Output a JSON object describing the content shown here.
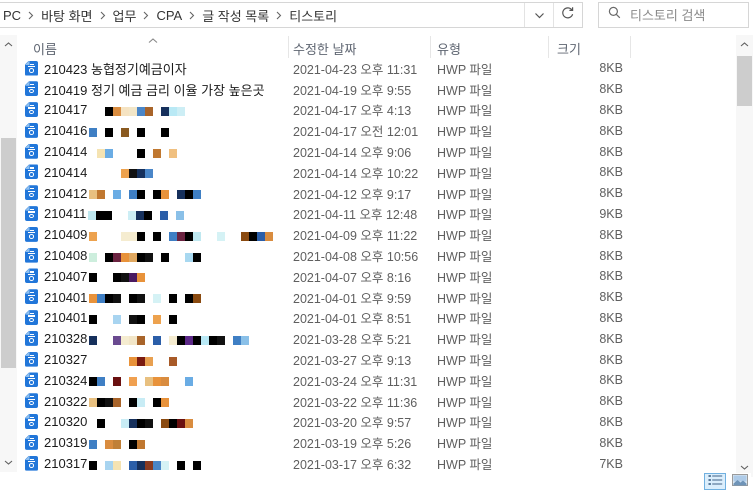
{
  "breadcrumb": {
    "items": [
      "PC",
      "바탕 화면",
      "업무",
      "CPA",
      "글 작성 목록",
      "티스토리"
    ]
  },
  "address_bar": {
    "dropdown_icon": "chevron-down-icon",
    "refresh_icon": "refresh-icon"
  },
  "search": {
    "placeholder": "티스토리 검색",
    "icon": "search-icon"
  },
  "list": {
    "columns": [
      {
        "key": "name",
        "label": "이름"
      },
      {
        "key": "date",
        "label": "수정한 날짜"
      },
      {
        "key": "type",
        "label": "유형"
      },
      {
        "key": "size",
        "label": "크기"
      }
    ],
    "sort": {
      "column": "이름",
      "direction": "asc"
    },
    "files": [
      {
        "name": "210423 농협정기예금이자",
        "censor": [],
        "date": "2021-04-23 오후 11:31",
        "type": "HWP 파일",
        "size": "8KB"
      },
      {
        "name": "210419 정기 예금 금리 이율 가장 높은곳",
        "censor": [],
        "date": "2021-04-19 오후 9:55",
        "type": "HWP 파일",
        "size": "8KB"
      },
      {
        "name": "210417",
        "censor": [
          "",
          "",
          "#000000",
          "#d98c3f",
          "#f5e3c2",
          "#f2e6c8",
          "#4a86c8",
          "#a8642a",
          "",
          "#16305c",
          "#b9e9f5",
          "#cdeef5"
        ],
        "date": "2021-04-17 오후 4:13",
        "type": "HWP 파일",
        "size": "8KB"
      },
      {
        "name": "210416",
        "censor": [
          "#3f7fc4",
          "",
          "#000000",
          "",
          "#8a5a20",
          "",
          "#000000",
          "",
          "",
          "#000000"
        ],
        "date": "2021-04-17 오전 12:01",
        "type": "HWP 파일",
        "size": "8KB"
      },
      {
        "name": "210414",
        "censor": [
          "",
          "#f5e3b2",
          "#6aace4",
          "",
          "",
          "",
          "#000000",
          "",
          "#c07830",
          "",
          "#f0c080"
        ],
        "date": "2021-04-14 오후 9:06",
        "type": "HWP 파일",
        "size": "8KB"
      },
      {
        "name": "210414",
        "censor": [
          "",
          "",
          "",
          "",
          "#eda24e",
          "#111111",
          "#16305c",
          "#4a86c8"
        ],
        "date": "2021-04-14 오후 10:22",
        "type": "HWP 파일",
        "size": "8KB"
      },
      {
        "name": "210412",
        "censor": [
          "#e8c080",
          "#c07830",
          "",
          "#6aace4",
          "",
          "#3f7fc4",
          "#000000",
          "",
          "#000000",
          "#e8923a",
          "",
          "#16305c",
          "#000000",
          "#3f7fc4"
        ],
        "date": "2021-04-12 오후 9:17",
        "type": "HWP 파일",
        "size": "8KB"
      },
      {
        "name": "210411",
        "censor": [
          "#bfe8f0",
          "#000000",
          "#000000",
          "",
          "",
          "#cdeef5",
          "#16305c",
          "#000000",
          "",
          "#2b5ea8",
          "",
          "#8ac0e8"
        ],
        "date": "2021-04-11 오후 12:48",
        "type": "HWP 파일",
        "size": "9KB"
      },
      {
        "name": "210409",
        "censor": [
          "#eda24e",
          "",
          "",
          "",
          "#f5ecd0",
          "#f5ecd0",
          "#000000",
          "",
          "#000000",
          "",
          "#3f7fc4",
          "#6b2340",
          "#000000",
          "#bfe8f0",
          "",
          "",
          "#d5f2f5",
          "",
          "",
          "#8a4a10",
          "#000000",
          "#2b5ea8",
          "#d98c3f"
        ],
        "date": "2021-04-09 오후 11:22",
        "type": "HWP 파일",
        "size": "8KB"
      },
      {
        "name": "210408",
        "censor": [
          "#cdeedd",
          "",
          "#000000",
          "#6b2340",
          "#e8923a",
          "#e0a860",
          "#000000",
          "#111111",
          "",
          "#000000",
          "",
          "",
          "#a8d8f0",
          "#000000"
        ],
        "date": "2021-04-08 오후 10:56",
        "type": "HWP 파일",
        "size": "8KB"
      },
      {
        "name": "210407",
        "censor": [
          "#000000",
          "",
          "",
          "#000000",
          "#111111",
          "#4a1a60",
          "#e8923a"
        ],
        "date": "2021-04-07 오후 8:16",
        "type": "HWP 파일",
        "size": "8KB"
      },
      {
        "name": "210401",
        "censor": [
          "#e8923a",
          "#3f7fc4",
          "#000000",
          "#111111",
          "",
          "#000000",
          "#111111",
          "",
          "#d5f2f5",
          "",
          "#000000",
          "",
          "#000000",
          "#8a4a10"
        ],
        "date": "2021-04-01 오후 9:59",
        "type": "HWP 파일",
        "size": "8KB"
      },
      {
        "name": "210401",
        "censor": [
          "#000000",
          "",
          "",
          "#a8d4f0",
          "",
          "#111111",
          "#000000",
          "",
          "#eda24e",
          "",
          "#000000"
        ],
        "date": "2021-04-01 오후 8:51",
        "type": "HWP 파일",
        "size": "8KB"
      },
      {
        "name": "210328",
        "censor": [
          "#16305c",
          "",
          "",
          "#6a4a90",
          "#f5ecd0",
          "#f2e6c8",
          "#a8642a",
          "",
          "#2b5ea8",
          "",
          "#f5ecd0",
          "#000000",
          "#5c2888",
          "#000000",
          "#b9e9f5",
          "#000000",
          "#111111",
          "",
          "#3f7fc4",
          "#8ac0e8"
        ],
        "date": "2021-03-28 오후 5:21",
        "type": "HWP 파일",
        "size": "8KB"
      },
      {
        "name": "210327",
        "censor": [
          "",
          "",
          "",
          "",
          "",
          "#e8923a",
          "#7a1a10",
          "#e8a050",
          "",
          "",
          "#a85a28"
        ],
        "date": "2021-03-27 오후 9:13",
        "type": "HWP 파일",
        "size": "8KB"
      },
      {
        "name": "210324",
        "censor": [
          "#000000",
          "#3f7fc4",
          "",
          "#6a1010",
          "",
          "#f0a050",
          "",
          "#e8c080",
          "#e8923a",
          "#d98c3f",
          "",
          "",
          "#6aace4"
        ],
        "date": "2021-03-24 오후 11:31",
        "type": "HWP 파일",
        "size": "8KB"
      },
      {
        "name": "210322",
        "censor": [
          "#e8c080",
          "#000000",
          "#111111",
          "#a8642a",
          "",
          "#000000",
          "#c8ecf5",
          "",
          "#000000",
          "#e8923a"
        ],
        "date": "2021-03-22 오후 11:36",
        "type": "HWP 파일",
        "size": "8KB"
      },
      {
        "name": "210320",
        "censor": [
          "",
          "#000000",
          "",
          "",
          "#c8ecf5",
          "#16305c",
          "#000000",
          "#111111",
          "",
          "#8a4a10",
          "#000000",
          "#6a1010",
          "#d98c3f"
        ],
        "date": "2021-03-20 오후 9:57",
        "type": "HWP 파일",
        "size": "8KB"
      },
      {
        "name": "210319",
        "censor": [
          "#3f7fc4",
          "",
          "#d98c3f",
          "#c08038",
          "",
          "#000000",
          "#c07830"
        ],
        "date": "2021-03-19 오후 5:26",
        "type": "HWP 파일",
        "size": "8KB"
      },
      {
        "name": "210317",
        "censor": [
          "#000000",
          "",
          "#a8d4f0",
          "#f5e3b2",
          "",
          "#2b5ea8",
          "#16305c",
          "#8a3a20",
          "#4a86c8",
          "#d5f2f5",
          "",
          "#000000",
          "",
          "#000000"
        ],
        "date": "2021-03-17 오후 6:32",
        "type": "HWP 파일",
        "size": "7KB"
      }
    ]
  },
  "view_switch": {
    "details_icon": "details-view-icon",
    "thumbnail_icon": "thumbnail-view-icon",
    "active": "details"
  },
  "colors": {
    "hwp_icon_blue": "#2176d9",
    "active_view_bg": "#dbeefc",
    "active_view_border": "#70b0e0"
  }
}
